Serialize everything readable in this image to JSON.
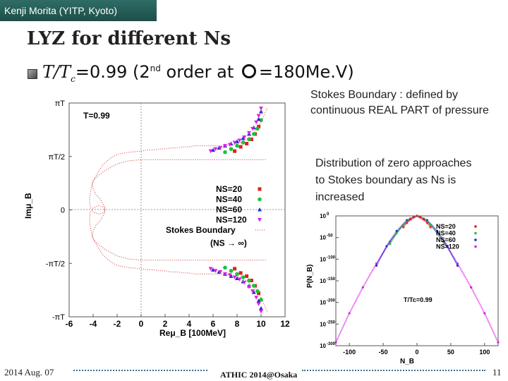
{
  "header": {
    "author": "Kenji Morita (YITP, Kyoto)"
  },
  "slide": {
    "title": "LYZ for different Ns",
    "subtitle": {
      "t_over": "T/T",
      "c": "c",
      "value": "=0.99 (2",
      "nd": "nd",
      "order_at": " order at ",
      "mu_value": "=180Me.V)"
    },
    "note_stokes": "Stokes Boundary : defined by continuous REAL PART of pressure",
    "note_distribution": "Distribution of zero approaches to Stokes boundary as Ns is increased"
  },
  "footer": {
    "date": "2014 Aug. 07",
    "conference": "ATHIC 2014@Osaka",
    "page": "11"
  },
  "colors": {
    "bar": "#1d4f49",
    "n20": "#e02020",
    "n40": "#20c040",
    "n60": "#2030d0",
    "n120": "#e020e0",
    "stokes": "#cc3333"
  },
  "chart_data": [
    {
      "type": "scatter",
      "title": "",
      "xlabel": "Reμ_B [100MeV]",
      "ylabel": "Imμ_B",
      "annotation": "T=0.99",
      "xlim": [
        -6,
        12
      ],
      "x_ticks": [
        "-6",
        "-4",
        "-2",
        "0",
        "2",
        "4",
        "6",
        "8",
        "10",
        "12"
      ],
      "y_ticks": [
        "πT",
        "πT/2",
        "0",
        "-πT/2",
        "-πT"
      ],
      "ylim": [
        -1,
        1
      ],
      "legend": [
        "NS=20",
        "NS=40",
        "NS=60",
        "NS=120",
        "Stokes Boundary",
        "(NS → ∞)"
      ],
      "stokes_boundary": {
        "x": [
          10.5,
          10.3,
          10.0,
          9.5,
          9.0,
          8.5,
          8.0,
          7.5,
          7.0,
          6.5,
          6.0,
          5.5,
          5.0,
          4.5,
          4.0,
          3.5,
          3.0,
          2.5,
          2.0,
          1.5,
          1.0,
          0.5,
          0.0,
          -1.0,
          -2.0,
          -2.6,
          -3.2,
          -3.6,
          -4.0,
          -4.2,
          -4.3,
          -4.25,
          -4.0,
          -3.5,
          -3.0,
          -3.1,
          -3.4,
          -3.8,
          -4.0,
          -4.1,
          -3.8,
          -3.0,
          -2.0,
          -1.0,
          0.0,
          1.0,
          2.0,
          3.0,
          4.0,
          5.0,
          6.0,
          7.0,
          8.0,
          9.0,
          9.5,
          10.0,
          10.5
        ],
        "y": [
          0.95,
          0.9,
          0.82,
          0.74,
          0.68,
          0.64,
          0.62,
          0.61,
          0.6,
          0.6,
          0.6,
          0.6,
          0.6,
          0.6,
          0.59,
          0.59,
          0.58,
          0.58,
          0.57,
          0.57,
          0.56,
          0.56,
          0.55,
          0.54,
          0.52,
          0.48,
          0.42,
          0.35,
          0.27,
          0.18,
          0.1,
          0.03,
          -0.02,
          -0.04,
          -0.02,
          0.04,
          0.1,
          0.15,
          0.2,
          0.25,
          0.3,
          0.37,
          0.43,
          0.46,
          0.47,
          0.47,
          0.47,
          0.47,
          0.47,
          0.47,
          0.47,
          0.47,
          0.47,
          0.47,
          0.47,
          0.47,
          0.47
        ]
      },
      "series": [
        {
          "name": "NS=20",
          "x": [
            7.8,
            8.3,
            8.8,
            9.2,
            9.5,
            9.8
          ],
          "y": [
            0.55,
            0.59,
            0.62,
            0.66,
            0.71,
            0.78
          ]
        },
        {
          "name": "NS=40",
          "x": [
            7.0,
            7.5,
            8.0,
            8.5,
            9.0,
            9.4,
            9.7,
            10.0
          ],
          "y": [
            0.54,
            0.57,
            0.6,
            0.63,
            0.66,
            0.71,
            0.76,
            0.84
          ]
        },
        {
          "name": "NS=60",
          "x": [
            6.0,
            6.5,
            7.0,
            7.5,
            8.0,
            8.5,
            9.0,
            9.4,
            9.8,
            10.0
          ],
          "y": [
            0.56,
            0.58,
            0.6,
            0.62,
            0.64,
            0.67,
            0.71,
            0.77,
            0.85,
            0.92
          ]
        },
        {
          "name": "NS=120",
          "x": [
            5.8,
            6.2,
            6.6,
            7.0,
            7.4,
            7.8,
            8.2,
            8.6,
            9.0,
            9.3,
            9.6,
            9.8,
            10.0
          ],
          "y": [
            0.55,
            0.57,
            0.58,
            0.6,
            0.61,
            0.63,
            0.65,
            0.68,
            0.72,
            0.76,
            0.82,
            0.88,
            0.95
          ]
        }
      ]
    },
    {
      "type": "line",
      "title": "",
      "xlabel": "N_B",
      "ylabel": "P(N_B)",
      "annotation": "T/Tc=0.99",
      "xlim": [
        -120,
        120
      ],
      "ylim": [
        -300,
        0
      ],
      "x_ticks": [
        "-100",
        "-50",
        "0",
        "50",
        "100"
      ],
      "y_ticks": [
        "10^0",
        "10^-50",
        "10^-100",
        "10^-150",
        "10^-200",
        "10^-250",
        "10^-300"
      ],
      "legend": [
        "NS=20",
        "NS=40",
        "NS=60",
        "NS=120"
      ],
      "series": [
        {
          "name": "NS=20",
          "x": [
            -20,
            -15,
            -10,
            -5,
            0,
            5,
            10,
            15,
            20
          ],
          "y": [
            -26,
            -16,
            -8,
            -3,
            0,
            -3,
            -8,
            -16,
            -26
          ]
        },
        {
          "name": "NS=40",
          "x": [
            -40,
            -30,
            -20,
            -10,
            0,
            10,
            20,
            30,
            40
          ],
          "y": [
            -65,
            -40,
            -20,
            -6,
            0,
            -6,
            -20,
            -40,
            -65
          ]
        },
        {
          "name": "NS=60",
          "x": [
            -60,
            -45,
            -30,
            -15,
            0,
            15,
            30,
            45,
            60
          ],
          "y": [
            -115,
            -70,
            -35,
            -10,
            0,
            -10,
            -35,
            -70,
            -115
          ]
        },
        {
          "name": "NS=120",
          "x": [
            -120,
            -100,
            -80,
            -60,
            -40,
            -20,
            0,
            20,
            40,
            60,
            80,
            100,
            120
          ],
          "y": [
            -292,
            -225,
            -165,
            -110,
            -60,
            -20,
            0,
            -20,
            -60,
            -110,
            -165,
            -225,
            -292
          ]
        }
      ]
    }
  ]
}
